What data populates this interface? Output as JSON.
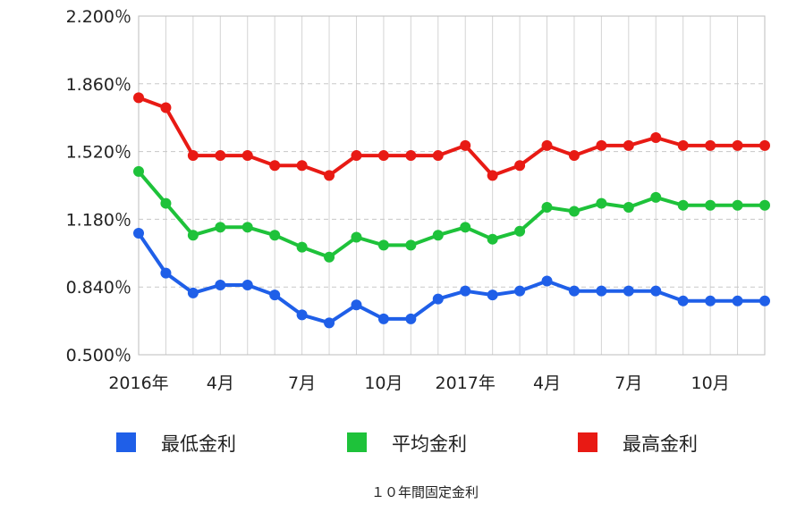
{
  "chart_data": {
    "type": "line",
    "title": "",
    "caption": "１０年間固定金利",
    "ylim": [
      0.5,
      2.2
    ],
    "y_ticks": [
      "0.500％",
      "0.840％",
      "1.180％",
      "1.520％",
      "1.860％",
      "2.200％"
    ],
    "y_tick_values": [
      0.5,
      0.84,
      1.18,
      1.52,
      1.86,
      2.2
    ],
    "x_tick_labels": [
      {
        "index": 0,
        "label": "2016年"
      },
      {
        "index": 3,
        "label": "4月"
      },
      {
        "index": 6,
        "label": "7月"
      },
      {
        "index": 9,
        "label": "10月"
      },
      {
        "index": 12,
        "label": "2017年"
      },
      {
        "index": 15,
        "label": "4月"
      },
      {
        "index": 18,
        "label": "7月"
      },
      {
        "index": 21,
        "label": "10月"
      }
    ],
    "x": [
      "2016-01",
      "2016-02",
      "2016-03",
      "2016-04",
      "2016-05",
      "2016-06",
      "2016-07",
      "2016-08",
      "2016-09",
      "2016-10",
      "2016-11",
      "2016-12",
      "2017-01",
      "2017-02",
      "2017-03",
      "2017-04",
      "2017-05",
      "2017-06",
      "2017-07",
      "2017-08",
      "2017-09",
      "2017-10",
      "2017-11",
      "2017-12"
    ],
    "grid": true,
    "legend_position": "bottom",
    "series": [
      {
        "name": "最低金利",
        "color": "#1f5fe8",
        "values": [
          1.11,
          0.91,
          0.81,
          0.85,
          0.85,
          0.8,
          0.7,
          0.66,
          0.75,
          0.68,
          0.68,
          0.78,
          0.82,
          0.8,
          0.82,
          0.87,
          0.82,
          0.82,
          0.82,
          0.82,
          0.77,
          0.77,
          0.77,
          0.77
        ]
      },
      {
        "name": "平均金利",
        "color": "#1ec23a",
        "values": [
          1.42,
          1.26,
          1.1,
          1.14,
          1.14,
          1.1,
          1.04,
          0.99,
          1.09,
          1.05,
          1.05,
          1.1,
          1.14,
          1.08,
          1.12,
          1.24,
          1.22,
          1.26,
          1.24,
          1.29,
          1.25,
          1.25,
          1.25,
          1.25
        ]
      },
      {
        "name": "最高金利",
        "color": "#e81a14",
        "values": [
          1.79,
          1.74,
          1.5,
          1.5,
          1.5,
          1.45,
          1.45,
          1.4,
          1.5,
          1.5,
          1.5,
          1.5,
          1.55,
          1.4,
          1.45,
          1.55,
          1.5,
          1.55,
          1.55,
          1.59,
          1.55,
          1.55,
          1.55,
          1.55
        ]
      }
    ]
  }
}
